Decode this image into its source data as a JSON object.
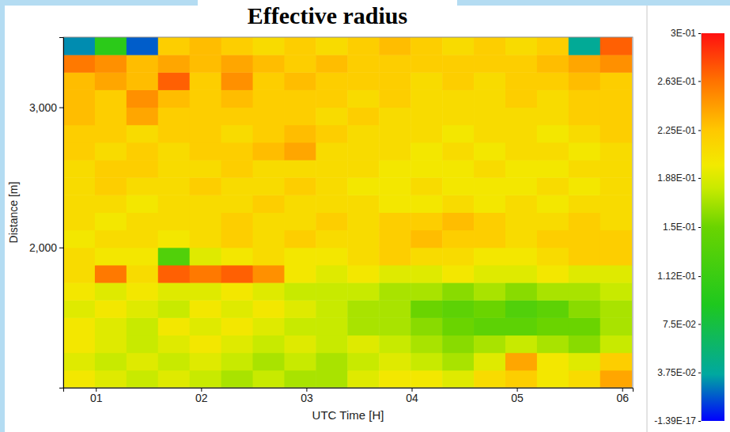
{
  "chart_data": {
    "type": "heatmap",
    "title": "Effective radius",
    "x_label": "UTC Time [H]",
    "y_label": "Distance [m]",
    "xlim": [
      0.69,
      6.1
    ],
    "ylim": [
      1000,
      3500
    ],
    "xticks": [
      {
        "value": 1,
        "label": "01"
      },
      {
        "value": 2,
        "label": "02"
      },
      {
        "value": 3,
        "label": "03"
      },
      {
        "value": 4,
        "label": "04"
      },
      {
        "value": 5,
        "label": "05"
      },
      {
        "value": 6,
        "label": "06"
      }
    ],
    "yticks": [
      {
        "value": 2000,
        "label": "2,000"
      },
      {
        "value": 3000,
        "label": "3,000"
      }
    ],
    "x": [
      0.84,
      1.14,
      1.44,
      1.74,
      2.04,
      2.34,
      2.64,
      2.94,
      3.24,
      3.54,
      3.84,
      4.14,
      4.44,
      4.74,
      5.04,
      5.34,
      5.64,
      5.94
    ],
    "y": [
      1062.5,
      1187.5,
      1312.5,
      1437.5,
      1562.5,
      1687.5,
      1812.5,
      1937.5,
      2062.5,
      2187.5,
      2312.5,
      2437.5,
      2562.5,
      2687.5,
      2812.5,
      2937.5,
      3062.5,
      3187.5,
      3312.5,
      3437.5
    ],
    "values": [
      [
        0.2,
        0.19,
        0.18,
        0.19,
        0.18,
        0.17,
        0.18,
        0.17,
        0.17,
        0.19,
        0.2,
        0.2,
        0.19,
        0.21,
        0.22,
        0.2,
        0.21,
        0.24
      ],
      [
        0.19,
        0.18,
        0.19,
        0.18,
        0.19,
        0.18,
        0.17,
        0.18,
        0.17,
        0.18,
        0.19,
        0.18,
        0.17,
        0.19,
        0.24,
        0.2,
        0.19,
        0.22
      ],
      [
        0.2,
        0.19,
        0.18,
        0.19,
        0.2,
        0.19,
        0.18,
        0.19,
        0.18,
        0.19,
        0.18,
        0.17,
        0.16,
        0.17,
        0.18,
        0.17,
        0.16,
        0.18
      ],
      [
        0.2,
        0.19,
        0.18,
        0.2,
        0.19,
        0.2,
        0.19,
        0.18,
        0.18,
        0.17,
        0.17,
        0.16,
        0.15,
        0.14,
        0.14,
        0.15,
        0.15,
        0.17
      ],
      [
        0.19,
        0.2,
        0.19,
        0.18,
        0.2,
        0.19,
        0.2,
        0.19,
        0.18,
        0.17,
        0.17,
        0.15,
        0.14,
        0.15,
        0.13,
        0.14,
        0.16,
        0.17
      ],
      [
        0.2,
        0.19,
        0.2,
        0.19,
        0.19,
        0.2,
        0.19,
        0.18,
        0.18,
        0.18,
        0.17,
        0.17,
        0.16,
        0.17,
        0.16,
        0.17,
        0.17,
        0.18
      ],
      [
        0.21,
        0.26,
        0.21,
        0.27,
        0.26,
        0.27,
        0.25,
        0.2,
        0.19,
        0.2,
        0.19,
        0.19,
        0.2,
        0.19,
        0.19,
        0.2,
        0.19,
        0.19
      ],
      [
        0.21,
        0.2,
        0.2,
        0.13,
        0.19,
        0.2,
        0.21,
        0.2,
        0.2,
        0.21,
        0.22,
        0.21,
        0.21,
        0.2,
        0.2,
        0.21,
        0.22,
        0.22
      ],
      [
        0.2,
        0.21,
        0.21,
        0.2,
        0.21,
        0.22,
        0.21,
        0.22,
        0.21,
        0.21,
        0.22,
        0.23,
        0.22,
        0.22,
        0.21,
        0.22,
        0.22,
        0.22
      ],
      [
        0.21,
        0.2,
        0.21,
        0.21,
        0.21,
        0.22,
        0.21,
        0.21,
        0.22,
        0.21,
        0.22,
        0.22,
        0.23,
        0.22,
        0.21,
        0.21,
        0.22,
        0.21
      ],
      [
        0.21,
        0.21,
        0.2,
        0.21,
        0.21,
        0.21,
        0.22,
        0.21,
        0.21,
        0.21,
        0.2,
        0.2,
        0.21,
        0.2,
        0.21,
        0.2,
        0.21,
        0.21
      ],
      [
        0.21,
        0.22,
        0.21,
        0.21,
        0.22,
        0.21,
        0.21,
        0.22,
        0.21,
        0.2,
        0.2,
        0.21,
        0.2,
        0.2,
        0.2,
        0.21,
        0.2,
        0.21
      ],
      [
        0.21,
        0.22,
        0.22,
        0.21,
        0.21,
        0.22,
        0.21,
        0.21,
        0.21,
        0.21,
        0.2,
        0.2,
        0.2,
        0.21,
        0.2,
        0.2,
        0.21,
        0.21
      ],
      [
        0.22,
        0.21,
        0.22,
        0.21,
        0.22,
        0.22,
        0.23,
        0.24,
        0.21,
        0.21,
        0.21,
        0.2,
        0.21,
        0.2,
        0.21,
        0.21,
        0.2,
        0.21
      ],
      [
        0.22,
        0.22,
        0.21,
        0.22,
        0.22,
        0.21,
        0.22,
        0.23,
        0.22,
        0.21,
        0.21,
        0.21,
        0.2,
        0.21,
        0.21,
        0.2,
        0.21,
        0.22
      ],
      [
        0.23,
        0.22,
        0.24,
        0.22,
        0.22,
        0.22,
        0.22,
        0.22,
        0.21,
        0.22,
        0.21,
        0.21,
        0.21,
        0.21,
        0.21,
        0.21,
        0.22,
        0.22
      ],
      [
        0.23,
        0.22,
        0.25,
        0.23,
        0.22,
        0.23,
        0.22,
        0.22,
        0.22,
        0.21,
        0.22,
        0.21,
        0.21,
        0.21,
        0.22,
        0.21,
        0.22,
        0.22
      ],
      [
        0.23,
        0.24,
        0.23,
        0.27,
        0.22,
        0.25,
        0.22,
        0.23,
        0.22,
        0.22,
        0.22,
        0.21,
        0.22,
        0.21,
        0.22,
        0.22,
        0.23,
        0.22
      ],
      [
        0.26,
        0.25,
        0.23,
        0.24,
        0.23,
        0.24,
        0.23,
        0.22,
        0.23,
        0.22,
        0.22,
        0.22,
        0.22,
        0.22,
        0.22,
        0.23,
        0.24,
        0.25
      ],
      [
        0.03,
        0.1,
        0.02,
        0.22,
        0.23,
        0.22,
        0.21,
        0.22,
        0.21,
        0.22,
        0.23,
        0.22,
        0.21,
        0.22,
        0.21,
        0.22,
        0.04,
        0.27
      ]
    ],
    "colorbar": {
      "range": [
        -1.39e-17,
        0.3
      ],
      "ticks": [
        {
          "value": 0.3,
          "label": "3E-01"
        },
        {
          "value": 0.263,
          "label": "2.63E-01"
        },
        {
          "value": 0.225,
          "label": "2.25E-01"
        },
        {
          "value": 0.188,
          "label": "1.88E-01"
        },
        {
          "value": 0.15,
          "label": "1.5E-01"
        },
        {
          "value": 0.112,
          "label": "1.12E-01"
        },
        {
          "value": 0.075,
          "label": "7.5E-02"
        },
        {
          "value": 0.0375,
          "label": "3.75E-02"
        },
        {
          "value": -1.39e-17,
          "label": "-1.39E-17"
        }
      ]
    }
  }
}
